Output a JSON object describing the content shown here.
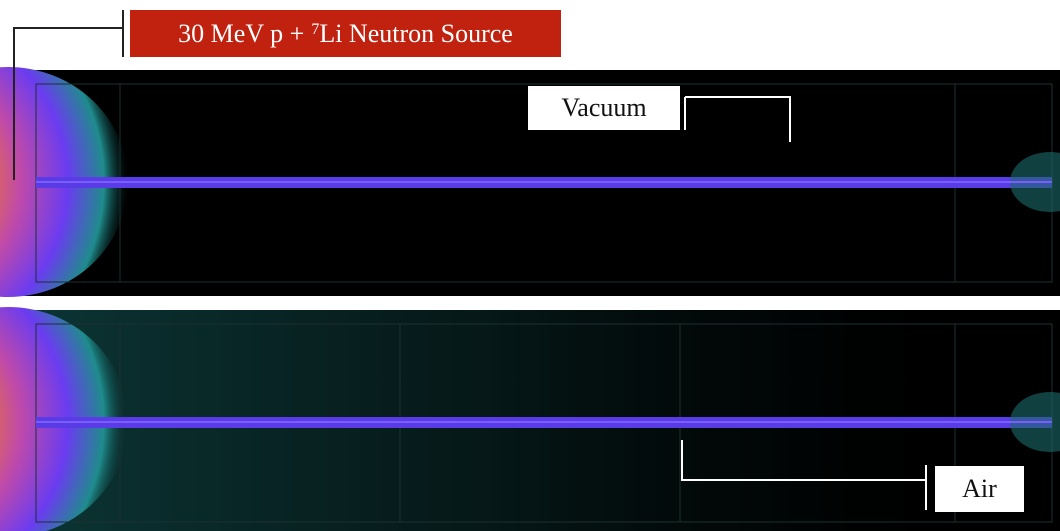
{
  "labels": {
    "source": {
      "before": "30 MeV p +",
      "superscript": "7",
      "after": "Li Neutron Source"
    },
    "vacuum": "Vacuum",
    "air": "Air"
  }
}
